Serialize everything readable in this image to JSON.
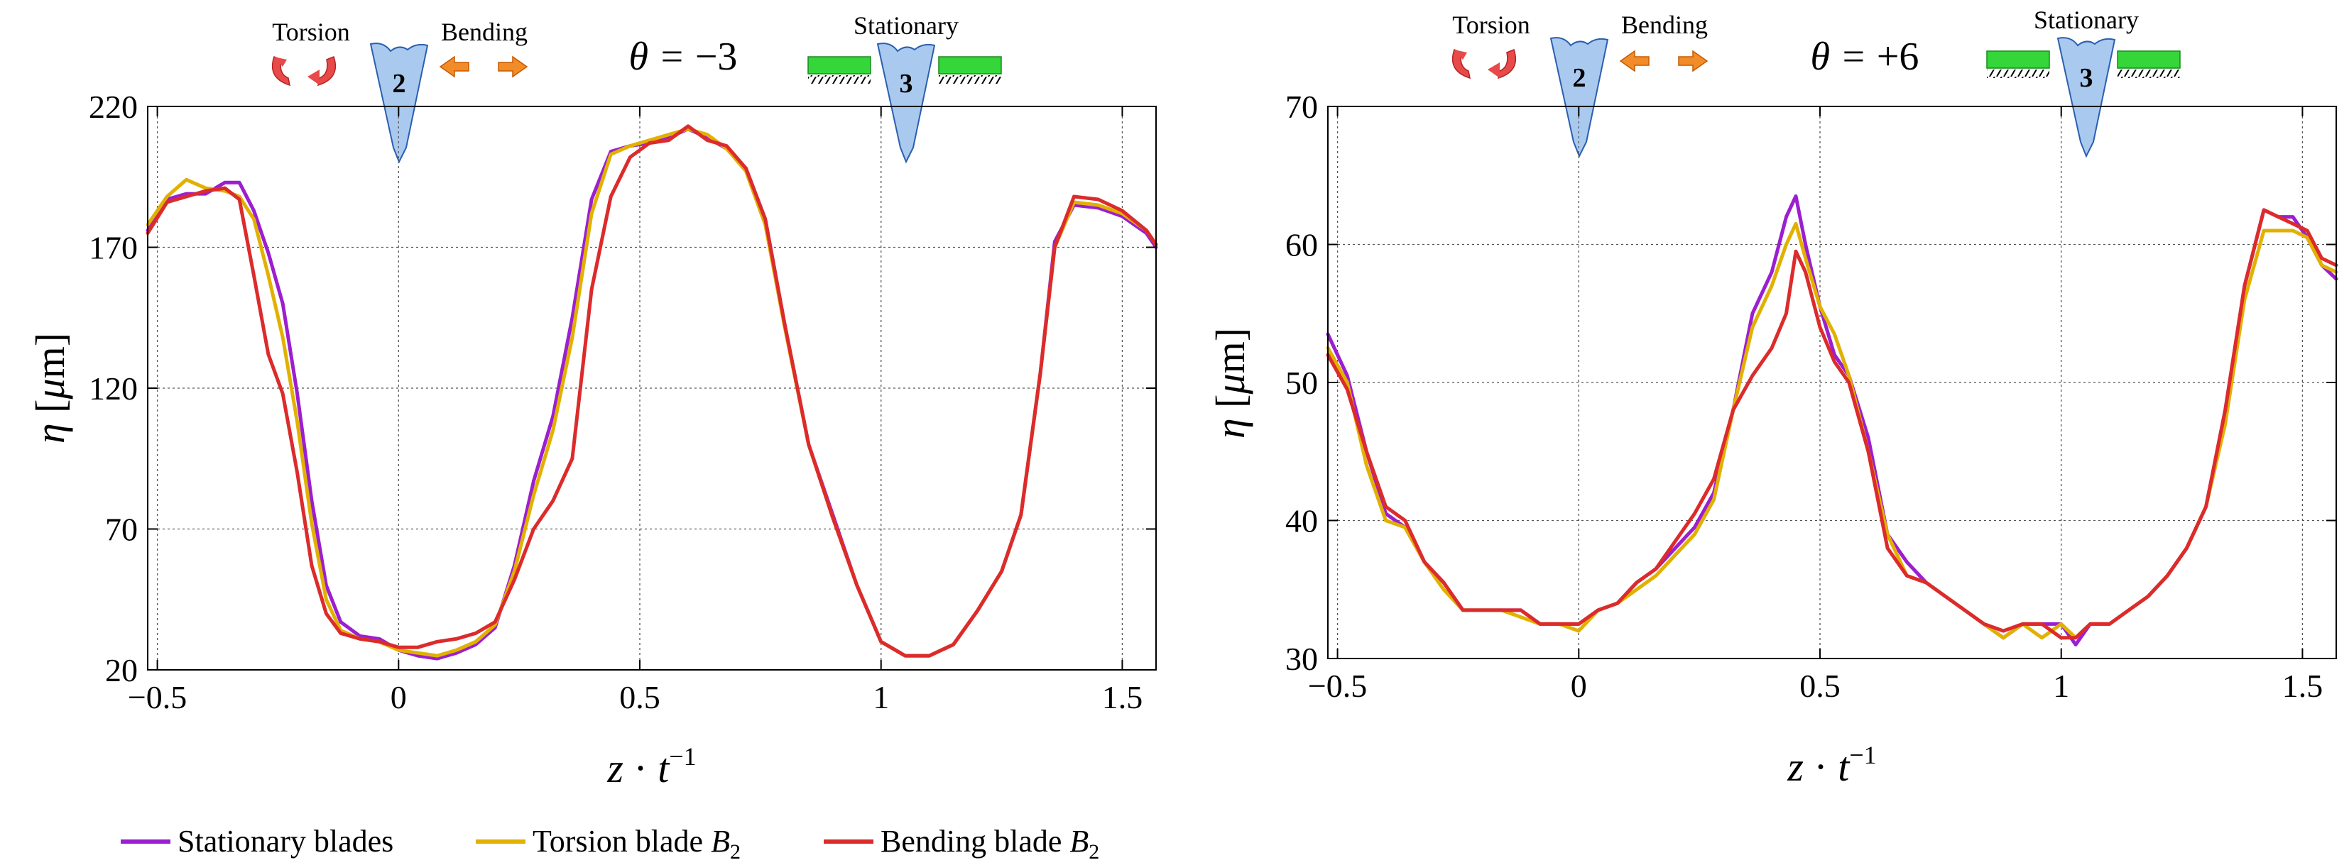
{
  "legend": [
    {
      "name": "Stationary blades",
      "color": "#9b1fd0"
    },
    {
      "name": "Torsion blade B2",
      "color": "#e2b100"
    },
    {
      "name": "Bending blade B2",
      "color": "#dc2b2b"
    }
  ],
  "chart_data": [
    {
      "type": "line",
      "title": "θ = −3",
      "theta_value": "−3",
      "xlabel": "z · t⁻¹",
      "ylabel": "η [μm]",
      "xlim": [
        -0.52,
        1.57
      ],
      "ylim": [
        20,
        220
      ],
      "xticks": [
        -0.5,
        0,
        0.5,
        1,
        1.5
      ],
      "xtick_labels": [
        "−0.5",
        "0",
        "0.5",
        "1",
        "1.5"
      ],
      "yticks": [
        20,
        70,
        120,
        170,
        220
      ],
      "ytick_labels": [
        "20",
        "70",
        "120",
        "170",
        "220"
      ],
      "grid": "dotted",
      "annotations": {
        "torsion": "Torsion",
        "bending": "Bending",
        "stationary": "Stationary",
        "blade2": "2",
        "blade3": "3"
      },
      "series": [
        {
          "name": "Stationary blades",
          "color": "#9b1fd0",
          "x": [
            -0.52,
            -0.48,
            -0.44,
            -0.4,
            -0.36,
            -0.33,
            -0.3,
            -0.27,
            -0.24,
            -0.21,
            -0.18,
            -0.15,
            -0.12,
            -0.08,
            -0.04,
            0.0,
            0.04,
            0.08,
            0.12,
            0.16,
            0.2,
            0.24,
            0.28,
            0.32,
            0.36,
            0.4,
            0.44,
            0.48,
            0.52,
            0.56,
            0.6,
            0.64,
            0.68,
            0.72,
            0.76,
            0.8,
            0.85,
            0.9,
            0.95,
            1.0,
            1.05,
            1.1,
            1.15,
            1.2,
            1.25,
            1.29,
            1.33,
            1.36,
            1.4,
            1.45,
            1.5,
            1.55,
            1.57
          ],
          "y": [
            176,
            187,
            189,
            189,
            193,
            193,
            183,
            168,
            150,
            118,
            80,
            50,
            37,
            32,
            31,
            27,
            25,
            24,
            26,
            29,
            35,
            57,
            87,
            110,
            145,
            187,
            204,
            206,
            207,
            209,
            212,
            209,
            205,
            198,
            180,
            143,
            100,
            75,
            50,
            30,
            25,
            25,
            29,
            41,
            55,
            75,
            125,
            172,
            185,
            184,
            181,
            175,
            170
          ]
        },
        {
          "name": "Torsion blade B2",
          "color": "#e2b100",
          "x": [
            -0.52,
            -0.48,
            -0.44,
            -0.4,
            -0.36,
            -0.33,
            -0.3,
            -0.27,
            -0.24,
            -0.21,
            -0.18,
            -0.15,
            -0.12,
            -0.08,
            -0.04,
            0.0,
            0.04,
            0.08,
            0.12,
            0.16,
            0.2,
            0.24,
            0.28,
            0.32,
            0.36,
            0.4,
            0.44,
            0.48,
            0.52,
            0.56,
            0.6,
            0.64,
            0.68,
            0.72,
            0.76,
            0.8,
            0.85,
            0.9,
            0.95,
            1.0,
            1.05,
            1.1,
            1.15,
            1.2,
            1.25,
            1.29,
            1.33,
            1.36,
            1.4,
            1.45,
            1.5,
            1.55,
            1.57
          ],
          "y": [
            178,
            188,
            194,
            191,
            190,
            188,
            180,
            160,
            138,
            108,
            72,
            45,
            34,
            31,
            30,
            27,
            26,
            25,
            27,
            30,
            36,
            55,
            82,
            105,
            138,
            182,
            203,
            206,
            208,
            210,
            212,
            210,
            205,
            197,
            178,
            142,
            100,
            74,
            50,
            30,
            25,
            25,
            29,
            41,
            55,
            75,
            125,
            170,
            186,
            185,
            182,
            176,
            171
          ]
        },
        {
          "name": "Bending blade B2",
          "color": "#dc2b2b",
          "x": [
            -0.52,
            -0.48,
            -0.44,
            -0.4,
            -0.36,
            -0.33,
            -0.3,
            -0.27,
            -0.24,
            -0.21,
            -0.18,
            -0.15,
            -0.12,
            -0.08,
            -0.04,
            0.0,
            0.04,
            0.08,
            0.12,
            0.16,
            0.2,
            0.24,
            0.28,
            0.32,
            0.36,
            0.4,
            0.44,
            0.48,
            0.52,
            0.56,
            0.6,
            0.64,
            0.68,
            0.72,
            0.76,
            0.8,
            0.85,
            0.9,
            0.95,
            1.0,
            1.05,
            1.1,
            1.15,
            1.2,
            1.25,
            1.29,
            1.33,
            1.36,
            1.4,
            1.45,
            1.5,
            1.55,
            1.57
          ],
          "y": [
            175,
            186,
            188,
            190,
            191,
            187,
            160,
            132,
            118,
            90,
            57,
            40,
            33,
            31,
            30,
            28,
            28,
            30,
            31,
            33,
            37,
            52,
            70,
            80,
            95,
            155,
            188,
            202,
            207,
            208,
            213,
            208,
            206,
            198,
            180,
            143,
            100,
            74,
            50,
            30,
            25,
            25,
            29,
            41,
            55,
            75,
            125,
            170,
            188,
            187,
            183,
            176,
            171
          ]
        }
      ]
    },
    {
      "type": "line",
      "title": "θ = +6",
      "theta_value": "+6",
      "xlabel": "z · t⁻¹",
      "ylabel": "η [μm]",
      "xlim": [
        -0.52,
        1.57
      ],
      "ylim": [
        30,
        70
      ],
      "xticks": [
        -0.5,
        0,
        0.5,
        1,
        1.5
      ],
      "xtick_labels": [
        "−0.5",
        "0",
        "0.5",
        "1",
        "1.5"
      ],
      "yticks": [
        30,
        40,
        50,
        60,
        70
      ],
      "ytick_labels": [
        "30",
        "40",
        "50",
        "60",
        "70"
      ],
      "grid": "dotted",
      "annotations": {
        "torsion": "Torsion",
        "bending": "Bending",
        "stationary": "Stationary",
        "blade2": "2",
        "blade3": "3"
      },
      "series": [
        {
          "name": "Stationary blades",
          "color": "#9b1fd0",
          "x": [
            -0.52,
            -0.48,
            -0.44,
            -0.4,
            -0.36,
            -0.32,
            -0.28,
            -0.24,
            -0.2,
            -0.16,
            -0.12,
            -0.08,
            -0.04,
            0.0,
            0.04,
            0.08,
            0.12,
            0.16,
            0.2,
            0.24,
            0.28,
            0.32,
            0.36,
            0.4,
            0.43,
            0.45,
            0.47,
            0.5,
            0.53,
            0.56,
            0.6,
            0.64,
            0.68,
            0.72,
            0.76,
            0.8,
            0.84,
            0.88,
            0.92,
            0.96,
            1.0,
            1.03,
            1.06,
            1.1,
            1.14,
            1.18,
            1.22,
            1.26,
            1.3,
            1.34,
            1.38,
            1.42,
            1.45,
            1.48,
            1.51,
            1.54,
            1.57
          ],
          "y": [
            53.5,
            50.5,
            45,
            40.5,
            39.5,
            37,
            35.5,
            33.5,
            33.5,
            33.5,
            33.5,
            32.5,
            32.5,
            32.5,
            33.5,
            34,
            35.5,
            36.5,
            38,
            39.5,
            42,
            48,
            55,
            58,
            62,
            63.5,
            60,
            55.5,
            52,
            50.5,
            46,
            39,
            37,
            35.5,
            34.5,
            33.5,
            32.5,
            31.5,
            32.5,
            32.5,
            32.5,
            31,
            32.5,
            32.5,
            33.5,
            34.5,
            36,
            38,
            41,
            48,
            57,
            62.5,
            62,
            62,
            60.5,
            58.5,
            57.5
          ]
        },
        {
          "name": "Torsion blade B2",
          "color": "#e2b100",
          "x": [
            -0.52,
            -0.48,
            -0.44,
            -0.4,
            -0.36,
            -0.32,
            -0.28,
            -0.24,
            -0.2,
            -0.16,
            -0.12,
            -0.08,
            -0.04,
            0.0,
            0.04,
            0.08,
            0.12,
            0.16,
            0.2,
            0.24,
            0.28,
            0.32,
            0.36,
            0.4,
            0.43,
            0.45,
            0.47,
            0.5,
            0.53,
            0.56,
            0.6,
            0.64,
            0.68,
            0.72,
            0.76,
            0.8,
            0.84,
            0.88,
            0.92,
            0.96,
            1.0,
            1.03,
            1.06,
            1.1,
            1.14,
            1.18,
            1.22,
            1.26,
            1.3,
            1.34,
            1.38,
            1.42,
            1.45,
            1.48,
            1.51,
            1.54,
            1.57
          ],
          "y": [
            52.5,
            50,
            44,
            40,
            39.5,
            37,
            35,
            33.5,
            33.5,
            33.5,
            33,
            32.5,
            32.5,
            32,
            33.5,
            34,
            35,
            36,
            37.5,
            39,
            41.5,
            48,
            54,
            57,
            60,
            61.5,
            59,
            55.5,
            53.5,
            50.5,
            45,
            39,
            36,
            35.5,
            34.5,
            33.5,
            32.5,
            31.5,
            32.5,
            31.5,
            32.5,
            31.5,
            32.5,
            32.5,
            33.5,
            34.5,
            36,
            38,
            41,
            47,
            56,
            61,
            61,
            61,
            60.5,
            58.5,
            58
          ]
        },
        {
          "name": "Bending blade B2",
          "color": "#dc2b2b",
          "x": [
            -0.52,
            -0.48,
            -0.44,
            -0.4,
            -0.36,
            -0.32,
            -0.28,
            -0.24,
            -0.2,
            -0.16,
            -0.12,
            -0.08,
            -0.04,
            0.0,
            0.04,
            0.08,
            0.12,
            0.16,
            0.2,
            0.24,
            0.28,
            0.32,
            0.36,
            0.4,
            0.43,
            0.45,
            0.47,
            0.5,
            0.53,
            0.56,
            0.6,
            0.64,
            0.68,
            0.72,
            0.76,
            0.8,
            0.84,
            0.88,
            0.92,
            0.96,
            1.0,
            1.03,
            1.06,
            1.1,
            1.14,
            1.18,
            1.22,
            1.26,
            1.3,
            1.34,
            1.38,
            1.42,
            1.45,
            1.48,
            1.51,
            1.54,
            1.57
          ],
          "y": [
            52,
            49.5,
            45,
            41,
            40,
            37,
            35.5,
            33.5,
            33.5,
            33.5,
            33.5,
            32.5,
            32.5,
            32.5,
            33.5,
            34,
            35.5,
            36.5,
            38.5,
            40.5,
            43,
            48,
            50.5,
            52.5,
            55,
            59.5,
            58,
            54,
            51.5,
            50,
            45,
            38,
            36,
            35.5,
            34.5,
            33.5,
            32.5,
            32,
            32.5,
            32.5,
            31.5,
            31.5,
            32.5,
            32.5,
            33.5,
            34.5,
            36,
            38,
            41,
            48,
            57,
            62.5,
            62,
            61.5,
            61,
            59,
            58.5
          ]
        }
      ]
    }
  ]
}
